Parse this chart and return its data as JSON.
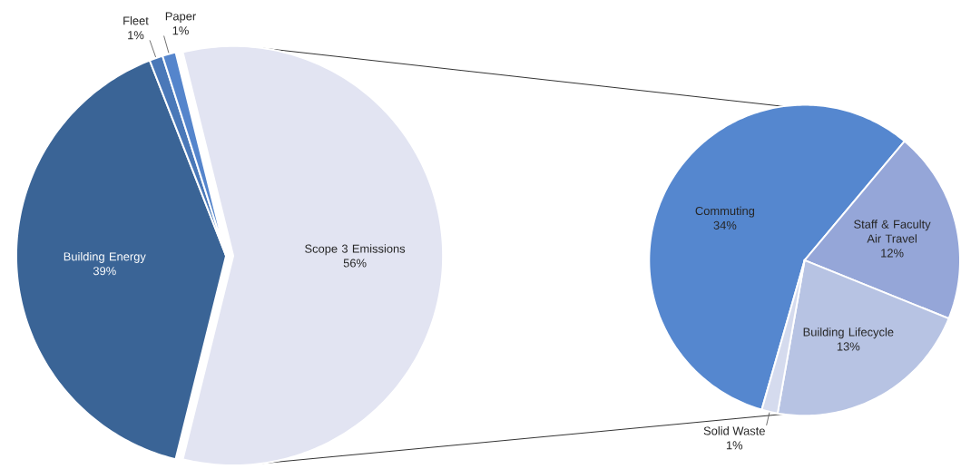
{
  "chart_data": [
    {
      "type": "pie",
      "categories": [
        "Building Energy",
        "Fleet",
        "Paper",
        "Scope 3 Emissions"
      ],
      "values": [
        39,
        1,
        1,
        56
      ],
      "value_labels": [
        "39%",
        "1%",
        "1%",
        "56%"
      ],
      "colors": [
        "#3a6496",
        "#4a78b8",
        "#5585cc",
        "#e2e4f2"
      ]
    },
    {
      "type": "pie",
      "categories": [
        "Commuting",
        "Staff & Faculty Air Travel",
        "Building Lifecycle",
        "Solid Waste"
      ],
      "values": [
        34,
        12,
        13,
        1
      ],
      "value_labels": [
        "34%",
        "12%",
        "13%",
        "1%"
      ],
      "colors": [
        "#5587cf",
        "#95a6d8",
        "#b7c3e3",
        "#d5dbee"
      ]
    }
  ]
}
